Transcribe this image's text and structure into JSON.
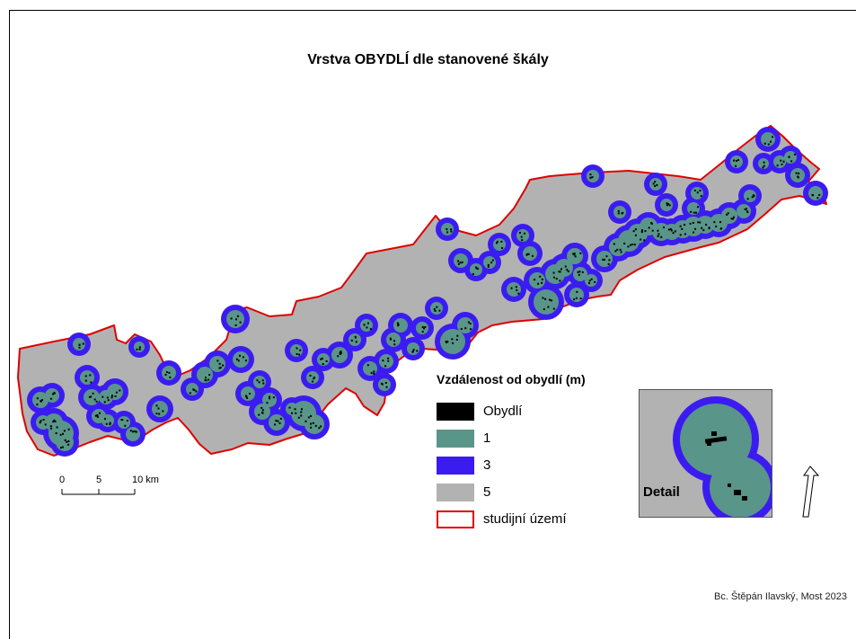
{
  "map": {
    "title": "Vrstva OBYDLÍ dle stanovené škály",
    "colors": {
      "dwelling": "#000000",
      "zone1": "#5a9589",
      "zone3": "#3b1cf0",
      "zone5": "#b2b2b2",
      "boundary": "#e00000"
    }
  },
  "legend": {
    "title": "Vzdálenost od obydlí (m)",
    "items": [
      {
        "label": "Obydlí",
        "color": "#000000"
      },
      {
        "label": "1",
        "color": "#5a9589"
      },
      {
        "label": "3",
        "color": "#3b1cf0"
      },
      {
        "label": "5",
        "color": "#b2b2b2"
      },
      {
        "label": "studijní území",
        "color": "#e00000"
      }
    ]
  },
  "scalebar": {
    "ticks": [
      "0",
      "5",
      "10 km"
    ]
  },
  "detail": {
    "label": "Detail"
  },
  "north_arrow": {
    "icon": "north-arrow-icon"
  },
  "credit": "Bc. Štěpán Ilavský, Most 2023"
}
